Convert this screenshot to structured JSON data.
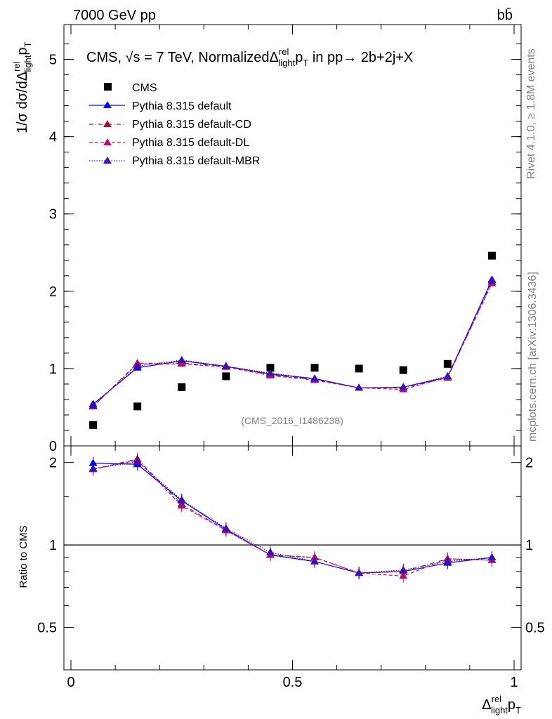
{
  "header": {
    "left": "7000 GeV pp",
    "right": "bb̄",
    "plot_title_prefix": "CMS, √s = 7 TeV, Normalized",
    "plot_title_var": "Δ",
    "plot_title_sup": "rel",
    "plot_title_sub": "light",
    "plot_title_p": "p",
    "plot_title_T": "T",
    "plot_title_suffix": " in pp→  2b+2j+X"
  },
  "side_text": {
    "rivet": "Rivet 4.1.0, ≥ 1.8M events",
    "mcplots": "mcplots.cern.ch [arXiv:1306.3436]"
  },
  "watermark": "(CMS_2016_I1486238)",
  "main_ylabel": {
    "prefix": "1/σ dσ/dΔ",
    "sup": "rel",
    "sub": "light",
    "p": "p",
    "T": "T"
  },
  "ratio_ylabel": "Ratio to CMS",
  "xlabel": {
    "d": "Δ",
    "sup": "rel",
    "sub": "light",
    "p": "p",
    "T": "T"
  },
  "legend": [
    {
      "label": "CMS"
    },
    {
      "label": "Pythia 8.315 default"
    },
    {
      "label": "Pythia 8.315 default-CD"
    },
    {
      "label": "Pythia 8.315 default-DL"
    },
    {
      "label": "Pythia 8.315 default-MBR"
    }
  ],
  "chart_data": {
    "type": "line",
    "title": "CMS, √s = 7 TeV, Normalized Δ^rel_light p_T in pp → 2b+2j+X",
    "xlabel": "Δ^rel_light p_T",
    "ylabel": "1/σ dσ/dΔ^rel_light p_T",
    "xlim": [
      0,
      1
    ],
    "ylim": [
      0,
      5.45
    ],
    "xticks": [
      "0",
      "0.5",
      "1"
    ],
    "yticks": [
      "0",
      "1",
      "2",
      "3",
      "4",
      "5"
    ],
    "x": [
      0.05,
      0.15,
      0.25,
      0.35,
      0.45,
      0.55,
      0.65,
      0.75,
      0.85,
      0.95
    ],
    "series": [
      {
        "name": "CMS",
        "style": "marker",
        "color": "#000000",
        "values": [
          0.27,
          0.51,
          0.76,
          0.9,
          1.01,
          1.01,
          1.0,
          0.98,
          1.06,
          2.46
        ]
      },
      {
        "name": "Pythia 8.315 default",
        "style": "solid",
        "color": "#0000ee",
        "values": [
          0.54,
          1.01,
          1.1,
          1.03,
          0.93,
          0.87,
          0.75,
          0.76,
          0.89,
          2.15
        ]
      },
      {
        "name": "Pythia 8.315 default-CD",
        "style": "dashdot",
        "color": "#a0103c",
        "values": [
          0.51,
          1.07,
          1.07,
          1.03,
          0.92,
          0.86,
          0.75,
          0.75,
          0.88,
          2.12
        ]
      },
      {
        "name": "Pythia 8.315 default-DL",
        "style": "dashed",
        "color": "#b0106e",
        "values": [
          0.51,
          1.06,
          1.06,
          1.02,
          0.91,
          0.85,
          0.75,
          0.73,
          0.89,
          2.1
        ]
      },
      {
        "name": "Pythia 8.315 default-MBR",
        "style": "dotted",
        "color": "#3a10b0",
        "values": [
          0.52,
          1.03,
          1.11,
          1.03,
          0.94,
          0.87,
          0.75,
          0.76,
          0.9,
          2.14
        ]
      }
    ],
    "ratio": {
      "ylabel": "Ratio to CMS",
      "ylim": [
        0.35,
        2.3
      ],
      "yticks": [
        "0.5",
        "1",
        "2"
      ],
      "reference": 1,
      "series": [
        {
          "name": "Pythia 8.315 default",
          "values": [
            1.99,
            1.97,
            1.45,
            1.14,
            0.92,
            0.87,
            0.79,
            0.8,
            0.86,
            0.9
          ]
        },
        {
          "name": "Pythia 8.315 default-CD",
          "values": [
            1.89,
            2.06,
            1.41,
            1.13,
            0.92,
            0.9,
            0.79,
            0.8,
            0.89,
            0.88
          ]
        },
        {
          "name": "Pythia 8.315 default-DL",
          "values": [
            1.89,
            2.04,
            1.39,
            1.13,
            0.92,
            0.9,
            0.79,
            0.77,
            0.89,
            0.88
          ]
        },
        {
          "name": "Pythia 8.315 default-MBR",
          "values": [
            1.9,
            2.01,
            1.46,
            1.15,
            0.94,
            0.87,
            0.79,
            0.81,
            0.87,
            0.9
          ]
        }
      ]
    }
  }
}
